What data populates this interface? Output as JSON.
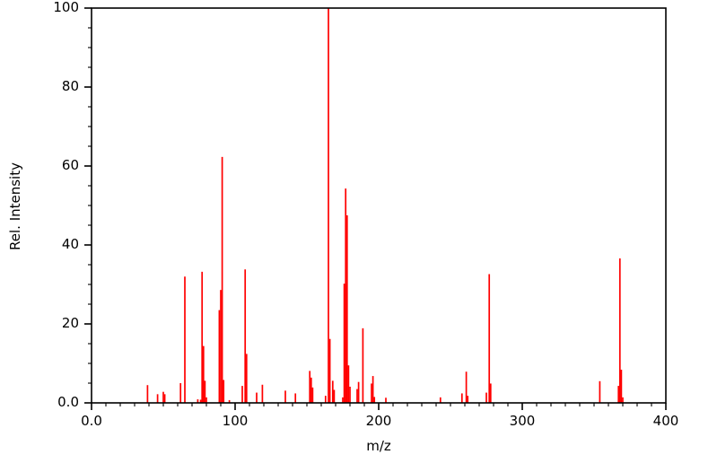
{
  "chart_data": {
    "type": "bar",
    "subtype": "mass-spectrum-stems",
    "title": "",
    "xlabel": "m/z",
    "ylabel": "Rel. Intensity",
    "xlim": [
      0,
      400
    ],
    "ylim": [
      0,
      100
    ],
    "x_major_tick_step": 100,
    "x_minor_tick_step": 10,
    "y_major_tick_step": 20,
    "y_minor_tick_step": 5,
    "x_tick_labels": [
      "0.0",
      "100",
      "200",
      "300",
      "400"
    ],
    "y_tick_labels": [
      "0.0",
      "20",
      "40",
      "60",
      "80",
      "100"
    ],
    "grid": false,
    "legend": false,
    "peak_color": "#ff0000",
    "axis_color": "#000000",
    "background_color": "#ffffff",
    "series": [
      {
        "name": "relative-intensity",
        "points": [
          {
            "mz": 39,
            "intensity": 4.5
          },
          {
            "mz": 46,
            "intensity": 2.2
          },
          {
            "mz": 50,
            "intensity": 2.8
          },
          {
            "mz": 51,
            "intensity": 2.2
          },
          {
            "mz": 62,
            "intensity": 5.0
          },
          {
            "mz": 65,
            "intensity": 32.0
          },
          {
            "mz": 74,
            "intensity": 0.9
          },
          {
            "mz": 76,
            "intensity": 0.8
          },
          {
            "mz": 77,
            "intensity": 33.2
          },
          {
            "mz": 78,
            "intensity": 14.4
          },
          {
            "mz": 79,
            "intensity": 5.6
          },
          {
            "mz": 80,
            "intensity": 1.4
          },
          {
            "mz": 89,
            "intensity": 23.5
          },
          {
            "mz": 90,
            "intensity": 28.6
          },
          {
            "mz": 91,
            "intensity": 62.3
          },
          {
            "mz": 92,
            "intensity": 5.8
          },
          {
            "mz": 96,
            "intensity": 0.7
          },
          {
            "mz": 105,
            "intensity": 4.3
          },
          {
            "mz": 107,
            "intensity": 33.8
          },
          {
            "mz": 108,
            "intensity": 12.4
          },
          {
            "mz": 115,
            "intensity": 2.6
          },
          {
            "mz": 119,
            "intensity": 4.6
          },
          {
            "mz": 135,
            "intensity": 3.1
          },
          {
            "mz": 142,
            "intensity": 2.4
          },
          {
            "mz": 152,
            "intensity": 8.1
          },
          {
            "mz": 153,
            "intensity": 6.4
          },
          {
            "mz": 154,
            "intensity": 3.9
          },
          {
            "mz": 163,
            "intensity": 1.8
          },
          {
            "mz": 165,
            "intensity": 100.0
          },
          {
            "mz": 166,
            "intensity": 16.2
          },
          {
            "mz": 168,
            "intensity": 5.6
          },
          {
            "mz": 169,
            "intensity": 3.3
          },
          {
            "mz": 175,
            "intensity": 1.4
          },
          {
            "mz": 176,
            "intensity": 30.2
          },
          {
            "mz": 177,
            "intensity": 54.3
          },
          {
            "mz": 178,
            "intensity": 47.5
          },
          {
            "mz": 179,
            "intensity": 9.5
          },
          {
            "mz": 180,
            "intensity": 4.1
          },
          {
            "mz": 185,
            "intensity": 3.5
          },
          {
            "mz": 186,
            "intensity": 5.3
          },
          {
            "mz": 189,
            "intensity": 18.9
          },
          {
            "mz": 195,
            "intensity": 4.9
          },
          {
            "mz": 196,
            "intensity": 6.8
          },
          {
            "mz": 197,
            "intensity": 1.5
          },
          {
            "mz": 205,
            "intensity": 1.3
          },
          {
            "mz": 243,
            "intensity": 1.4
          },
          {
            "mz": 258,
            "intensity": 2.4
          },
          {
            "mz": 261,
            "intensity": 7.9
          },
          {
            "mz": 262,
            "intensity": 1.8
          },
          {
            "mz": 275,
            "intensity": 2.6
          },
          {
            "mz": 277,
            "intensity": 32.6
          },
          {
            "mz": 278,
            "intensity": 4.9
          },
          {
            "mz": 354,
            "intensity": 5.5
          },
          {
            "mz": 367,
            "intensity": 4.3
          },
          {
            "mz": 368,
            "intensity": 36.6
          },
          {
            "mz": 369,
            "intensity": 8.4
          },
          {
            "mz": 370,
            "intensity": 1.4
          }
        ]
      }
    ]
  }
}
